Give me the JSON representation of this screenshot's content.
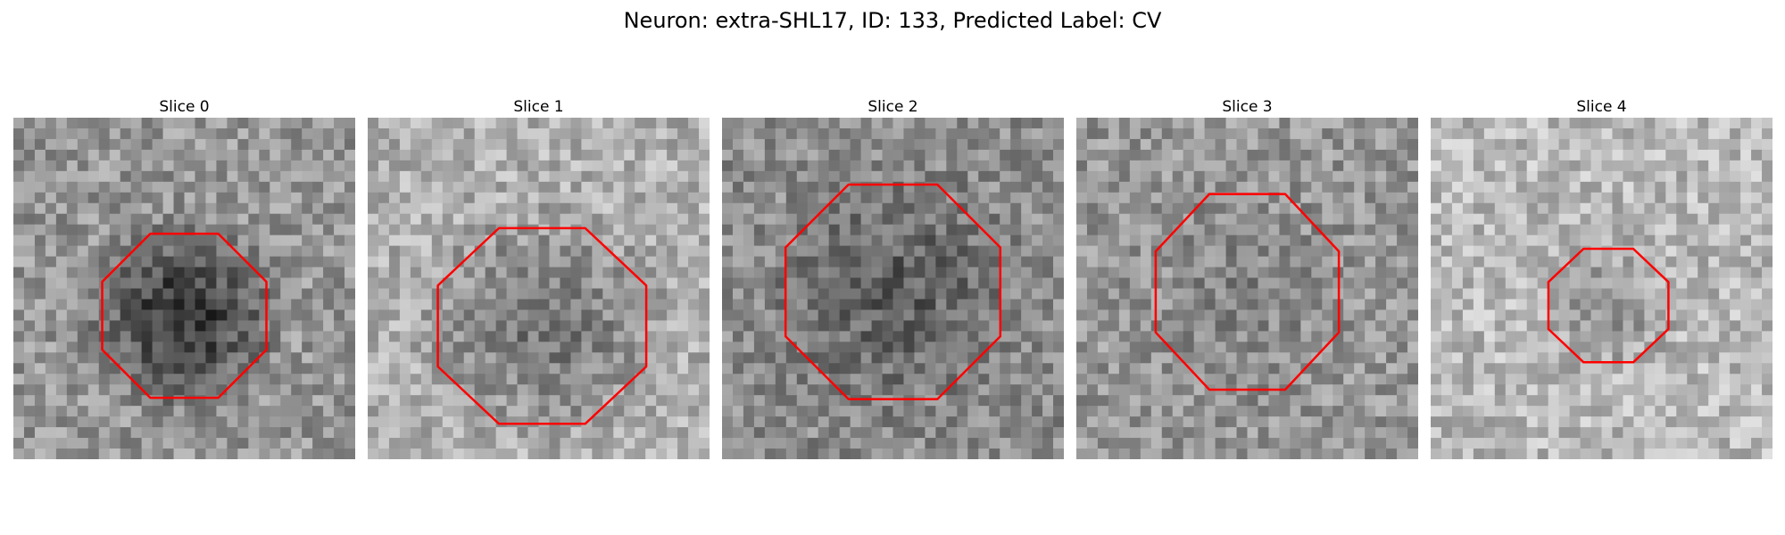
{
  "figure": {
    "title": "Neuron: extra-SHL17, ID: 133, Predicted Label: CV",
    "overlay_color": "#ff0000"
  },
  "slices": [
    {
      "label": "Slice 0",
      "mean_intensity": 150,
      "blob_intensity": 55,
      "contour": {
        "center": [
          0.5,
          0.58
        ],
        "radius": [
          0.26,
          0.26
        ]
      }
    },
    {
      "label": "Slice 1",
      "mean_intensity": 175,
      "blob_intensity": 120,
      "contour": {
        "center": [
          0.51,
          0.61
        ],
        "radius": [
          0.33,
          0.31
        ]
      }
    },
    {
      "label": "Slice 2",
      "mean_intensity": 140,
      "blob_intensity": 95,
      "contour": {
        "center": [
          0.5,
          0.51
        ],
        "radius": [
          0.34,
          0.34
        ]
      }
    },
    {
      "label": "Slice 3",
      "mean_intensity": 150,
      "blob_intensity": 135,
      "contour": {
        "center": [
          0.5,
          0.51
        ],
        "radius": [
          0.29,
          0.31
        ]
      }
    },
    {
      "label": "Slice 4",
      "mean_intensity": 185,
      "blob_intensity": 150,
      "contour": {
        "center": [
          0.52,
          0.55
        ],
        "radius": [
          0.19,
          0.18
        ]
      }
    }
  ]
}
